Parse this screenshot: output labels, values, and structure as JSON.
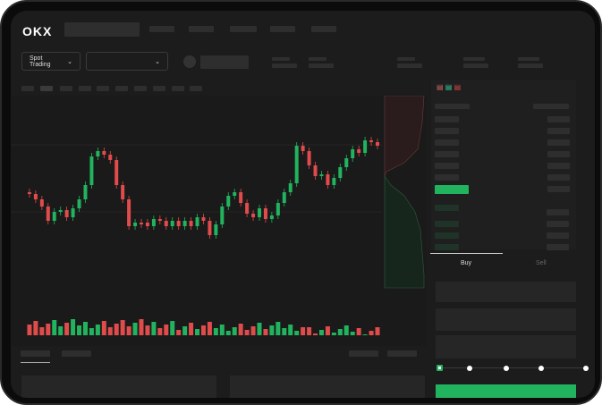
{
  "header": {
    "logo": "OKX"
  },
  "toolbar": {
    "market_selector": "Spot Trading",
    "pair_selector": "",
    "chevron": "chevron-down-icon"
  },
  "trade": {
    "tabs": [
      {
        "label": "Buy",
        "active": true
      },
      {
        "label": "Sell",
        "active": false
      }
    ],
    "slider_percent": 0
  },
  "colors": {
    "up": "#22b35e",
    "down": "#e04b4b",
    "background": "#1c1c1c"
  }
}
